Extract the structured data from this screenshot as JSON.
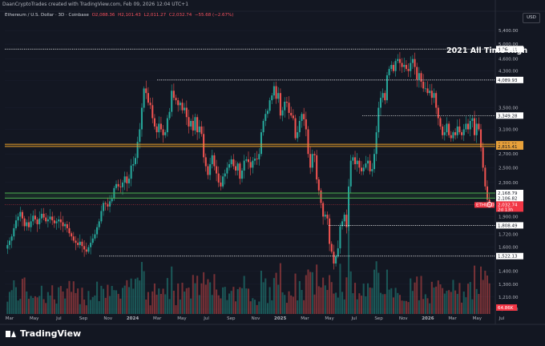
{
  "header": {
    "title": "DaanCryptoTrades created with TradingView.com, Feb 09, 2026 12:04 UTC+1"
  },
  "symbol_row": {
    "name": "Ethereum / U.S. Dollar · 3D · Coinbase",
    "o": "O2,088.36",
    "h": "H2,101.43",
    "l": "L2,011.27",
    "c": "C2,032.74",
    "chg": "−55.68 (−2.67%)"
  },
  "currency": "USD",
  "branding": "TradingView",
  "colors": {
    "background": "#131722",
    "up": "#26a69a",
    "down": "#ef5350",
    "level_orange": "#e09a2b",
    "level_green": "#4caf50",
    "price_red": "#f23645"
  },
  "chart_data": {
    "type": "candlestick",
    "ylabel": "USD",
    "scale": "log",
    "ylim": [
      1100,
      5700
    ],
    "y_ticks": [
      "5,400.00",
      "5,000.00",
      "4,600.00",
      "4,300.00",
      "4,080.00",
      "3,500.00",
      "3,100.00",
      "2,700.00",
      "2,500.00",
      "2,300.00",
      "1,900.00",
      "1,720.00",
      "1,600.00",
      "1,400.00",
      "1,300.00",
      "1,210.00",
      "1,130.00"
    ],
    "x_ticks": [
      "Mar",
      "May",
      "Jul",
      "Sep",
      "Nov",
      "2024",
      "Mar",
      "May",
      "Jul",
      "Sep",
      "Nov",
      "2025",
      "Mar",
      "May",
      "Jul",
      "Sep",
      "Nov",
      "2026",
      "Mar",
      "May",
      "Jul"
    ],
    "x_ticks_bold": [
      "2024",
      "2025",
      "2026"
    ],
    "annotations": [
      "2021 All Time High"
    ],
    "levels": [
      {
        "label": "4,864.11",
        "value": 4864.11,
        "style": "dotted",
        "color": "#ffffff"
      },
      {
        "label": "4,089.93",
        "value": 4089.93,
        "style": "dotted",
        "color": "#ffffff"
      },
      {
        "label": "3,349.28",
        "value": 3349.28,
        "style": "dotted",
        "color": "#ffffff"
      },
      {
        "label": "2,851.51",
        "value": 2851.51,
        "style": "solid",
        "color": "#e09a2b"
      },
      {
        "label": "2,815.41",
        "value": 2815.41,
        "style": "solid",
        "color": "#e09a2b"
      },
      {
        "label": "2,168.79",
        "value": 2168.79,
        "style": "solid",
        "color": "#4caf50"
      },
      {
        "label": "2,106.82",
        "value": 2106.82,
        "style": "solid",
        "color": "#4caf50"
      },
      {
        "label": "1,808.49",
        "value": 1808.49,
        "style": "dotted",
        "color": "#ffffff"
      },
      {
        "label": "1,522.13",
        "value": 1522.13,
        "style": "dotted",
        "color": "#ffffff"
      }
    ],
    "price_tag": {
      "label": "2,032.74",
      "symbol": "ETHUSD",
      "countdown": "2d 13h",
      "value": 2032.74
    },
    "volume_tag": {
      "label": "64.86K"
    },
    "series_close": [
      1620,
      1660,
      1700,
      1780,
      1860,
      1900,
      1950,
      1880,
      1800,
      1840,
      1790,
      1850,
      1910,
      1870,
      1820,
      1880,
      1930,
      1890,
      1850,
      1870,
      1900,
      1860,
      1830,
      1850,
      1870,
      1840,
      1800,
      1820,
      1780,
      1730,
      1700,
      1660,
      1640,
      1620,
      1650,
      1610,
      1580,
      1560,
      1600,
      1640,
      1680,
      1720,
      1790,
      1850,
      1960,
      2050,
      2040,
      2010,
      2070,
      2100,
      2230,
      2280,
      2250,
      2240,
      2300,
      2380,
      2290,
      2350,
      2530,
      2550,
      2640,
      2890,
      3100,
      3500,
      3900,
      3800,
      3600,
      3550,
      3300,
      3150,
      3050,
      3200,
      3100,
      3000,
      3050,
      3300,
      3420,
      3850,
      3700,
      3650,
      3550,
      3600,
      3450,
      3500,
      3320,
      3150,
      3250,
      3080,
      3320,
      3050,
      3150,
      3020,
      2650,
      2520,
      2400,
      2550,
      2680,
      2520,
      2420,
      2300,
      2250,
      2380,
      2420,
      2500,
      2550,
      2620,
      2520,
      2460,
      2560,
      2350,
      2460,
      2600,
      2620,
      2580,
      2500,
      2600,
      2630,
      2620,
      2700,
      3050,
      3250,
      3380,
      3440,
      3650,
      3750,
      3950,
      3680,
      3800,
      3350,
      3450,
      3620,
      3600,
      3400,
      3350,
      3300,
      2950,
      3050,
      3250,
      3380,
      3280,
      3100,
      2700,
      2500,
      2700,
      2680,
      2340,
      2200,
      2050,
      1900,
      1920,
      1880,
      1630,
      1560,
      1460,
      1520,
      1590,
      1800,
      1850,
      1920,
      1790,
      2250,
      2600,
      2650,
      2550,
      2600,
      2500,
      2450,
      2500,
      2560,
      2600,
      2450,
      2480,
      2700,
      3050,
      3500,
      3700,
      3800,
      3650,
      4200,
      4350,
      4450,
      4300,
      4550,
      4600,
      4500,
      4400,
      4450,
      4350,
      4300,
      4500,
      4600,
      4400,
      4100,
      4250,
      4050,
      3900,
      3900,
      3800,
      3850,
      3700,
      3800,
      3500,
      3300,
      3150,
      3000,
      3050,
      3200,
      3000,
      2950,
      3050,
      3000,
      3150,
      3050,
      3000,
      3100,
      3200,
      3100,
      3250,
      3300,
      3000,
      3200,
      3100,
      2800,
      2500,
      2250,
      2090,
      2032.74
    ]
  }
}
